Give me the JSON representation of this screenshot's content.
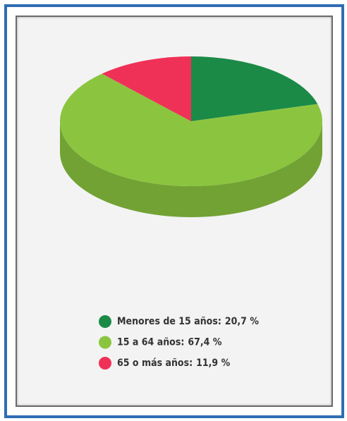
{
  "chart_data": {
    "type": "pie",
    "categories": [
      "Menores de 15 años:",
      "15 a 64 años:",
      "65 o más años:"
    ],
    "values": [
      20.7,
      67.4,
      11.9
    ],
    "value_labels": [
      "20,7 %",
      "67,4 %",
      "11,9 %"
    ],
    "colors": [
      "#1b8a47",
      "#8bc53f",
      "#ef3157"
    ],
    "legend": "bottom"
  }
}
